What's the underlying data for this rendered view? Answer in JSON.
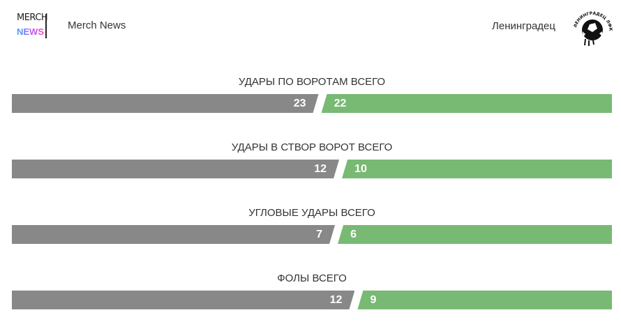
{
  "header": {
    "logo_text_top": "MERCH",
    "logo_text_bottom": "NEWS",
    "home_team": "Merch News",
    "away_team": "Ленинградец",
    "away_logo_text": "ЛЕНИНГРАДЕЦ ЛФК"
  },
  "colors": {
    "home": "#888888",
    "away": "#78b973"
  },
  "stats": [
    {
      "title": "УДАРЫ ПО ВОРОТАМ ВСЕГО",
      "home": 23,
      "away": 22
    },
    {
      "title": "УДАРЫ В СТВОР ВОРОТ ВСЕГО",
      "home": 12,
      "away": 10
    },
    {
      "title": "УГЛОВЫЕ УДАРЫ ВСЕГО",
      "home": 7,
      "away": 6
    },
    {
      "title": "ФОЛЫ ВСЕГО",
      "home": 12,
      "away": 9
    }
  ]
}
